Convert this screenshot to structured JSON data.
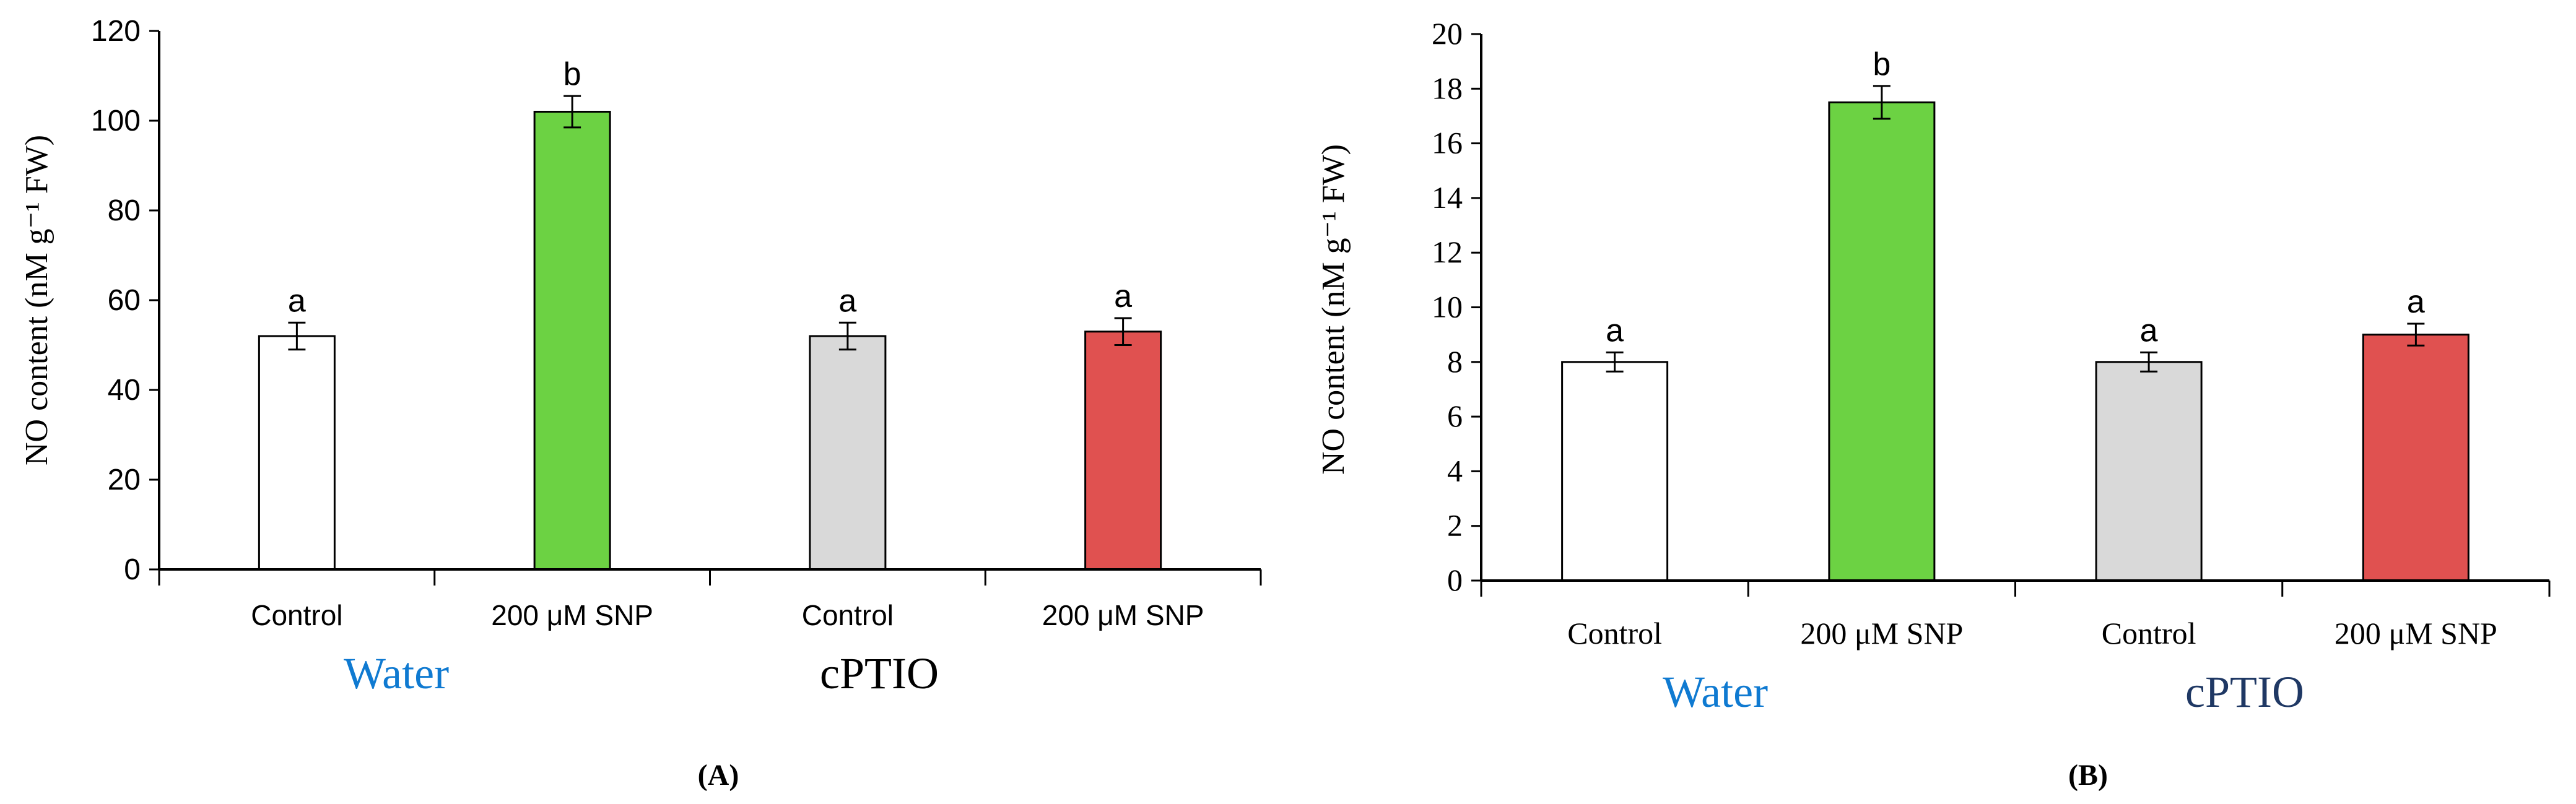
{
  "chart_data": [
    {
      "type": "bar",
      "panel_label": "(A)",
      "ylabel": "NO content (nM g⁻¹ FW)",
      "ylim": [
        0,
        120
      ],
      "yticks": [
        "0",
        "20",
        "40",
        "60",
        "80",
        "100",
        "120"
      ],
      "categories": [
        "Control",
        "200 μM SNP",
        "Control",
        "200 μM SNP"
      ],
      "values": [
        52,
        102,
        52,
        53
      ],
      "errors": [
        3,
        3.5,
        3,
        3
      ],
      "significance": [
        "a",
        "b",
        "a",
        "a"
      ],
      "bar_colors": [
        "#ffffff",
        "#6cd243",
        "#d9d9d9",
        "#e05150"
      ],
      "groups": [
        {
          "label": "Water",
          "color": "#0f7ad1"
        },
        {
          "label": "cPTIO",
          "color": "#000000"
        }
      ]
    },
    {
      "type": "bar",
      "panel_label": "(B)",
      "ylabel": "NO content (nM g⁻¹ FW)",
      "ylim": [
        0,
        20
      ],
      "yticks": [
        "0",
        "2",
        "4",
        "6",
        "8",
        "10",
        "12",
        "14",
        "16",
        "18",
        "20"
      ],
      "categories": [
        "Control",
        "200 μM SNP",
        "Control",
        "200 μM SNP"
      ],
      "values": [
        8,
        17.5,
        8,
        9
      ],
      "errors": [
        0.35,
        0.6,
        0.35,
        0.4
      ],
      "significance": [
        "a",
        "b",
        "a",
        "a"
      ],
      "bar_colors": [
        "#ffffff",
        "#6cd243",
        "#d9d9d9",
        "#e05150"
      ],
      "groups": [
        {
          "label": "Water",
          "color": "#0f7ad1"
        },
        {
          "label": "cPTIO",
          "color": "#1f3864"
        }
      ]
    }
  ]
}
